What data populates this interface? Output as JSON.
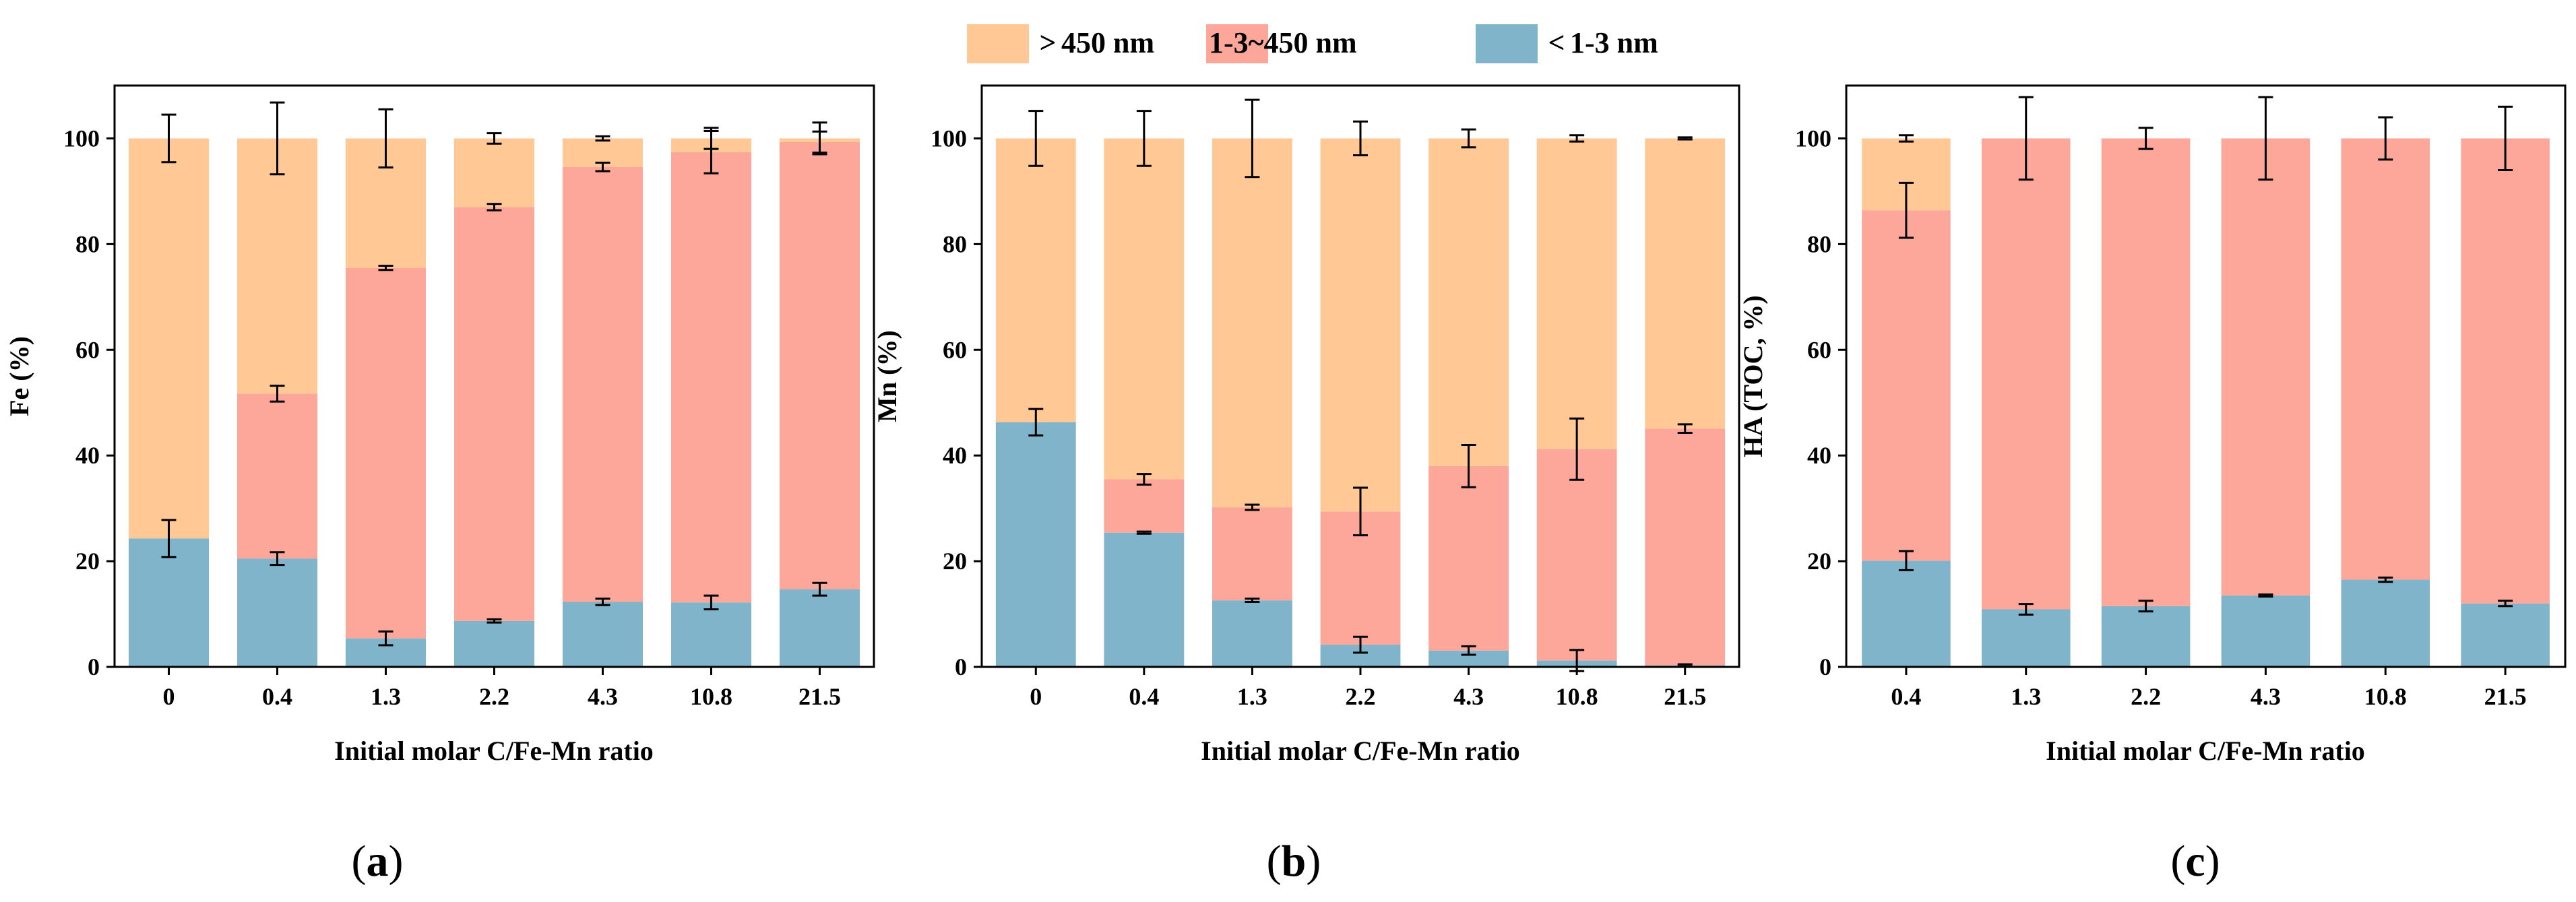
{
  "legend": [
    {
      "symbol": ">",
      "label": "450 nm",
      "color": "#FFC895"
    },
    {
      "symbol": "",
      "label": "1-3~450 nm",
      "color": "#FDA79B"
    },
    {
      "symbol": "<",
      "label": "1-3 nm",
      "color": "#80B4CB"
    }
  ],
  "chart_data": [
    {
      "type": "bar",
      "stacked": true,
      "panel_label": "(a)",
      "caption": {
        "open": "(",
        "letter": "a",
        "close": ")"
      },
      "ylabel": "Fe (%)",
      "xlabel": "Initial molar C/Fe-Mn ratio",
      "ylim": [
        0,
        110
      ],
      "yticks": [
        0,
        20,
        40,
        60,
        80,
        100
      ],
      "categories": [
        "0",
        "0.4",
        "1.3",
        "2.2",
        "4.3",
        "10.8",
        "21.5"
      ],
      "series": [
        {
          "name": "<1-3 nm",
          "color": "#80B4CB",
          "values": [
            24.3,
            20.5,
            5.4,
            8.7,
            12.3,
            12.2,
            14.7
          ],
          "errors": [
            3.5,
            1.2,
            1.3,
            0.3,
            0.6,
            1.3,
            1.2
          ]
        },
        {
          "name": "1-3~450 nm",
          "color": "#FDA79B",
          "values": [
            0,
            31.2,
            70.1,
            78.3,
            82.3,
            85.2,
            84.6
          ],
          "errors": [
            0,
            1.5,
            0.4,
            0.6,
            0.8,
            4.0,
            2.0
          ]
        },
        {
          "name": ">450 nm",
          "color": "#FFC895",
          "values": [
            75.7,
            48.3,
            24.5,
            13.0,
            5.4,
            2.6,
            0.7
          ],
          "errors": [
            4.5,
            6.8,
            5.5,
            1.0,
            0.4,
            2.0,
            3.0
          ]
        }
      ]
    },
    {
      "type": "bar",
      "stacked": true,
      "panel_label": "(b)",
      "caption": {
        "open": "(",
        "letter": "b",
        "close": ")"
      },
      "ylabel": "Mn (%)",
      "xlabel": "Initial molar C/Fe-Mn ratio",
      "ylim": [
        0,
        110
      ],
      "yticks": [
        0,
        20,
        40,
        60,
        80,
        100
      ],
      "categories": [
        "0",
        "0.4",
        "1.3",
        "2.2",
        "4.3",
        "10.8",
        "21.5"
      ],
      "series": [
        {
          "name": "<1-3 nm",
          "color": "#80B4CB",
          "values": [
            46.3,
            25.4,
            12.6,
            4.2,
            3.1,
            1.2,
            0.3
          ],
          "errors": [
            2.5,
            0.2,
            0.3,
            1.5,
            0.8,
            2.0,
            0.2
          ]
        },
        {
          "name": "1-3~450 nm",
          "color": "#FDA79B",
          "values": [
            0,
            10.1,
            17.6,
            25.2,
            34.9,
            40.0,
            44.8
          ],
          "errors": [
            0,
            1.0,
            0.5,
            4.5,
            4.0,
            5.8,
            0.8
          ]
        },
        {
          "name": ">450 nm",
          "color": "#FFC895",
          "values": [
            53.7,
            64.5,
            69.8,
            70.6,
            62.0,
            58.8,
            54.9
          ],
          "errors": [
            5.2,
            5.2,
            7.3,
            3.2,
            1.7,
            0.6,
            0.2
          ]
        }
      ]
    },
    {
      "type": "bar",
      "stacked": true,
      "panel_label": "(c)",
      "caption": {
        "open": "(",
        "letter": "c",
        "close": ")"
      },
      "ylabel": "HA (TOC, %)",
      "xlabel": "Initial molar C/Fe-Mn ratio",
      "ylim": [
        0,
        110
      ],
      "yticks": [
        0,
        20,
        40,
        60,
        80,
        100
      ],
      "categories": [
        "0.4",
        "1.3",
        "2.2",
        "4.3",
        "10.8",
        "21.5"
      ],
      "series": [
        {
          "name": "<1-3 nm",
          "color": "#80B4CB",
          "values": [
            20.1,
            10.9,
            11.5,
            13.5,
            16.5,
            12.0
          ],
          "errors": [
            1.8,
            1.0,
            1.0,
            0.2,
            0.4,
            0.5
          ]
        },
        {
          "name": "1-3~450 nm",
          "color": "#FDA79B",
          "values": [
            66.3,
            89.1,
            88.5,
            86.5,
            83.5,
            88.0
          ],
          "errors": [
            5.2,
            7.8,
            2.0,
            7.8,
            4.0,
            6.0
          ]
        },
        {
          "name": ">450 nm",
          "color": "#FFC895",
          "values": [
            13.6,
            0,
            0,
            0,
            0,
            0
          ],
          "errors": [
            0.6,
            0,
            0,
            0,
            0,
            0
          ]
        }
      ]
    }
  ]
}
